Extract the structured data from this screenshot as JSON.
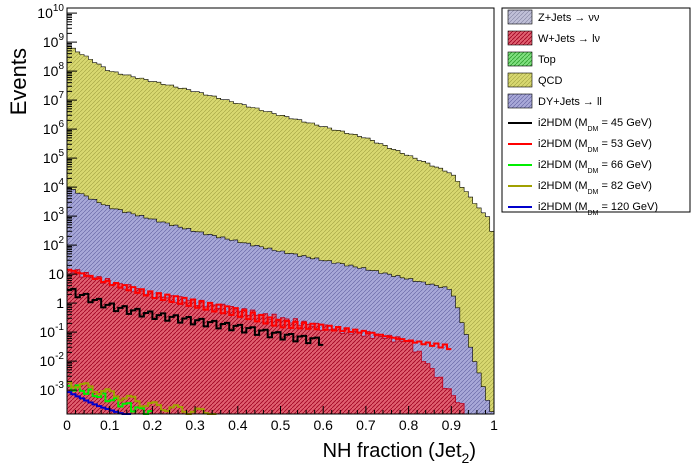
{
  "chart_data": {
    "type": "histogram",
    "x_axis": {
      "label": "NH fraction (Jet",
      "label_subscript": "2",
      "label_close": ")",
      "range": [
        0,
        1
      ],
      "ticks": [
        "0",
        "0.1",
        "0.2",
        "0.3",
        "0.4",
        "0.5",
        "0.6",
        "0.7",
        "0.8",
        "0.9",
        "1"
      ]
    },
    "y_axis": {
      "label": "Events",
      "scale": "log",
      "range": [
        0.00015,
        15000000000
      ],
      "ticks": [
        {
          "value": 0.001,
          "text": "10",
          "exp": "-3"
        },
        {
          "value": 0.01,
          "text": "10",
          "exp": "-2"
        },
        {
          "value": 0.1,
          "text": "10",
          "exp": "-1"
        },
        {
          "value": 1,
          "text": "1",
          "exp": ""
        },
        {
          "value": 10,
          "text": "10",
          "exp": ""
        },
        {
          "value": 100,
          "text": "10",
          "exp": "2"
        },
        {
          "value": 1000,
          "text": "10",
          "exp": "3"
        },
        {
          "value": 10000,
          "text": "10",
          "exp": "4"
        },
        {
          "value": 100000,
          "text": "10",
          "exp": "5"
        },
        {
          "value": 1000000,
          "text": "10",
          "exp": "6"
        },
        {
          "value": 10000000,
          "text": "10",
          "exp": "7"
        },
        {
          "value": 100000000,
          "text": "10",
          "exp": "8"
        },
        {
          "value": 1000000000,
          "text": "10",
          "exp": "9"
        },
        {
          "value": 10000000000,
          "text": "10",
          "exp": "10"
        }
      ]
    },
    "bins": 100,
    "stacked_series": [
      {
        "name": "Z+Jets → νν",
        "color": "#a0a0c8",
        "fill": "solid-light",
        "description_points": [
          [
            0,
            10000
          ],
          [
            0.1,
            2000
          ],
          [
            0.3,
            300
          ],
          [
            0.5,
            60
          ],
          [
            0.7,
            15
          ],
          [
            0.9,
            3
          ],
          [
            1,
            0.0001
          ]
        ]
      },
      {
        "name": "W+Jets → lν",
        "color": "#e04050",
        "fill": "hatched",
        "description_points": [
          [
            0,
            15
          ],
          [
            0.2,
            2
          ],
          [
            0.4,
            0.6
          ],
          [
            0.6,
            0.15
          ],
          [
            0.8,
            0.05
          ],
          [
            0.95,
            0.0001
          ]
        ]
      },
      {
        "name": "Top",
        "color": "#40c040",
        "fill": "hatched"
      },
      {
        "name": "QCD",
        "color": "#c8c860",
        "fill": "hatched",
        "description_points": [
          [
            0,
            800000000
          ],
          [
            0.1,
            100000000
          ],
          [
            0.3,
            20000000
          ],
          [
            0.5,
            3000000
          ],
          [
            0.7,
            500000
          ],
          [
            0.9,
            30000
          ],
          [
            0.98,
            1000
          ]
        ]
      },
      {
        "name": "DY+Jets → ll",
        "color": "#8080c0",
        "fill": "hatched"
      }
    ],
    "signal_series": [
      {
        "name": "i2HDM (M",
        "sub": "DM",
        "mass": " =  45 GeV)",
        "color": "#000000",
        "description_points": [
          [
            0,
            3
          ],
          [
            0.1,
            0.8
          ],
          [
            0.2,
            0.4
          ],
          [
            0.3,
            0.25
          ],
          [
            0.4,
            0.15
          ],
          [
            0.5,
            0.08
          ],
          [
            0.6,
            0.05
          ]
        ]
      },
      {
        "name": "i2HDM (M",
        "sub": "DM",
        "mass": " =  53 GeV)",
        "color": "#ff0000",
        "description_points": [
          [
            0,
            15
          ],
          [
            0.1,
            5
          ],
          [
            0.2,
            2
          ],
          [
            0.3,
            1
          ],
          [
            0.4,
            0.5
          ],
          [
            0.5,
            0.2
          ],
          [
            0.6,
            0.15
          ],
          [
            0.7,
            0.1
          ],
          [
            0.8,
            0.05
          ],
          [
            0.9,
            0.03
          ]
        ]
      },
      {
        "name": "i2HDM (M",
        "sub": "DM",
        "mass": " =  66 GeV)",
        "color": "#00ee00",
        "description_points": [
          [
            0,
            0.0015
          ],
          [
            0.1,
            0.0005
          ],
          [
            0.2,
            0.00015
          ]
        ]
      },
      {
        "name": "i2HDM (M",
        "sub": "DM",
        "mass": " =  82 GeV)",
        "color": "#a0a000",
        "description_points": [
          [
            0,
            0.002
          ],
          [
            0.1,
            0.0008
          ],
          [
            0.2,
            0.0003
          ],
          [
            0.35,
            0.00015
          ]
        ]
      },
      {
        "name": "i2HDM (M",
        "sub": "DM",
        "mass": " = 120 GeV)",
        "color": "#0000cc",
        "description_points": [
          [
            0,
            0.0009
          ],
          [
            0.1,
            0.0003
          ],
          [
            0.15,
            0.00015
          ]
        ]
      }
    ],
    "legend_placement": "right"
  }
}
